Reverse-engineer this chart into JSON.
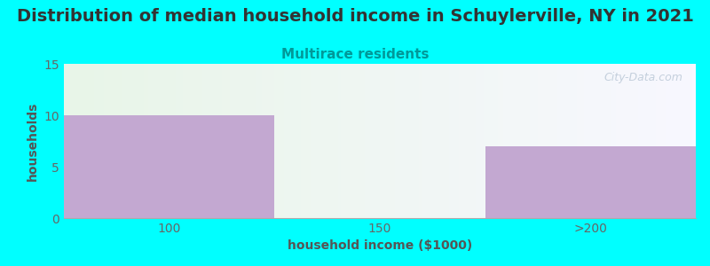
{
  "title": "Distribution of median household income in Schuylerville, NY in 2021",
  "subtitle": "Multirace residents",
  "xlabel": "household income ($1000)",
  "ylabel": "households",
  "categories": [
    "100",
    "150",
    ">200"
  ],
  "values": [
    10,
    0,
    7
  ],
  "bar_color": "#C3A8D1",
  "bg_color": "#00FFFF",
  "plot_bg_left": "#E8F5E8",
  "plot_bg_right": "#F8F8FF",
  "ylim": [
    0,
    15
  ],
  "yticks": [
    0,
    5,
    10,
    15
  ],
  "title_fontsize": 14,
  "subtitle_fontsize": 11,
  "subtitle_color": "#009999",
  "title_color": "#333333",
  "axis_label_color": "#555555",
  "tick_color": "#666666",
  "watermark": "City-Data.com",
  "bar_positions": [
    0.5,
    1.5,
    2.5
  ],
  "bar_width": 1.0,
  "xlim": [
    0,
    3
  ]
}
